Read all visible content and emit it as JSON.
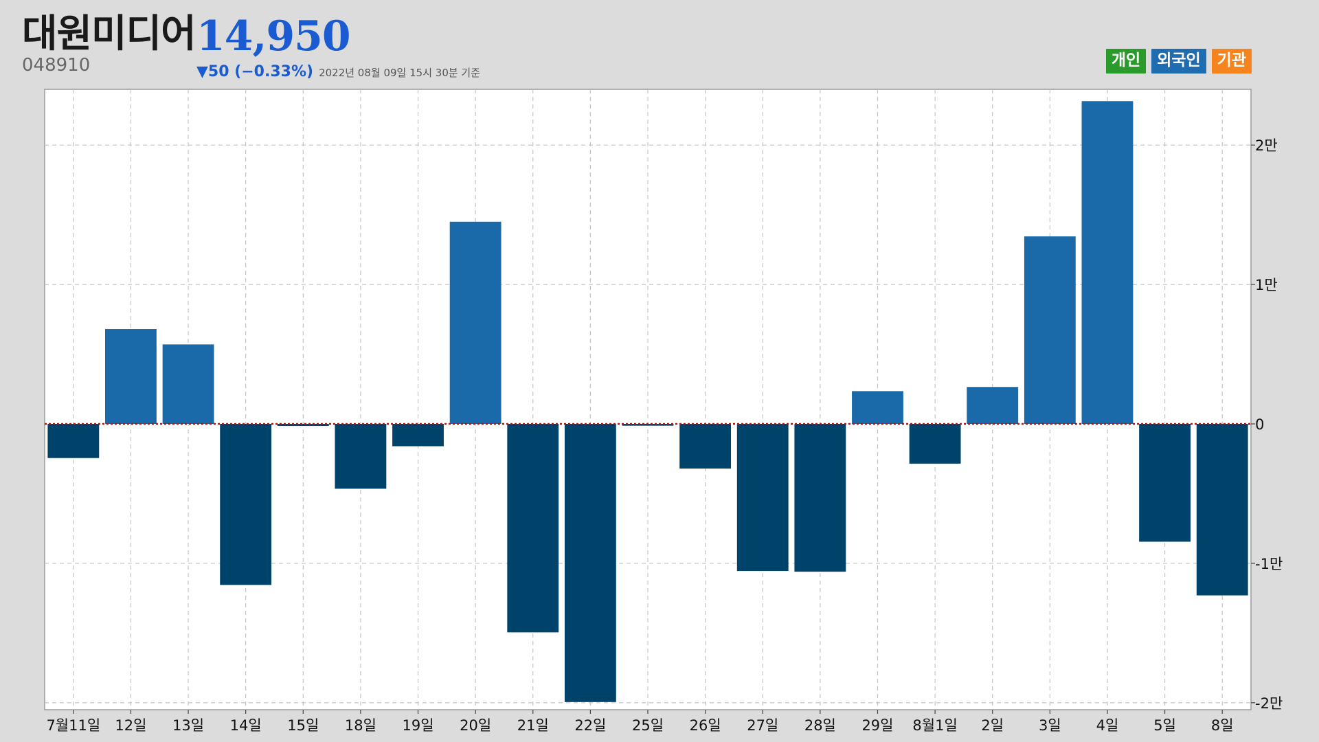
{
  "header": {
    "stock_name": "대원미디어",
    "price": "14,950",
    "code": "048910",
    "change": "▼50 (−0.33%)",
    "as_of": "2022년 08월 09일 15시 30분 기준"
  },
  "legend": [
    {
      "label": "개인",
      "color": "#2a9a2a"
    },
    {
      "label": "외국인",
      "color": "#1f6cb0"
    },
    {
      "label": "기관",
      "color": "#f5841f"
    }
  ],
  "colors": {
    "positive_bar": "#1a6aaa",
    "negative_bar": "#00436a",
    "zero_line": "#e00000",
    "grid": "#c4c4c4"
  },
  "chart_data": {
    "type": "bar",
    "title": "",
    "xlabel": "",
    "ylabel": "",
    "categories": [
      "7월11일",
      "12일",
      "13일",
      "14일",
      "15일",
      "18일",
      "19일",
      "20일",
      "21일",
      "22일",
      "25일",
      "26일",
      "27일",
      "28일",
      "29일",
      "8월1일",
      "2일",
      "3일",
      "4일",
      "5일",
      "8일"
    ],
    "series": [
      {
        "values": [
          -2450,
          6800,
          5700,
          -11550,
          -150,
          -4650,
          -1600,
          14500,
          -14950,
          -19950,
          -130,
          -3200,
          -10550,
          -10600,
          2350,
          -2850,
          2650,
          13450,
          23150,
          -8450,
          -12300
        ]
      }
    ],
    "ylim": [
      -20500,
      24000
    ],
    "yticks": [
      20000,
      10000,
      0,
      -10000,
      -20000
    ],
    "ytick_labels": [
      "2만",
      "1만",
      "0",
      "-1만",
      "-2만"
    ],
    "y_axis_position": "right",
    "grid": true
  }
}
